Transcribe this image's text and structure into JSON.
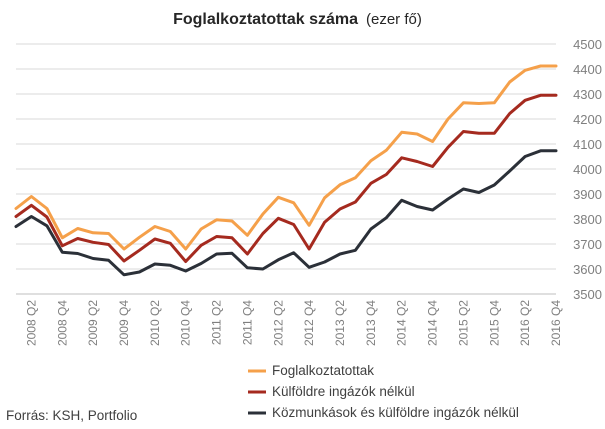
{
  "chart_data": {
    "type": "line",
    "title": "Foglalkoztatottak száma",
    "subtitle": "(ezer fő)",
    "source": "Forrás: KSH, Portfolio",
    "ylim": [
      3500,
      4500
    ],
    "yticks": [
      3500,
      3600,
      3700,
      3800,
      3900,
      4000,
      4100,
      4200,
      4300,
      4400,
      4500
    ],
    "ytick_labels": [
      "3500",
      "3600",
      "3700",
      "3800",
      "3900",
      "4000",
      "4100",
      "4200",
      "4300",
      "4400",
      "4500"
    ],
    "grid": true,
    "y_axis_position": "right",
    "legend_position": "bottom",
    "categories": [
      "2008 Q1",
      "2008 Q2",
      "2008 Q3",
      "2008 Q4",
      "2009 Q1",
      "2009 Q2",
      "2009 Q3",
      "2009 Q4",
      "2010 Q1",
      "2010 Q2",
      "2010 Q3",
      "2010 Q4",
      "2011 Q1",
      "2011 Q2",
      "2011 Q3",
      "2011 Q4",
      "2012 Q1",
      "2012 Q2",
      "2012 Q3",
      "2012 Q4",
      "2013 Q1",
      "2013 Q2",
      "2013 Q3",
      "2013 Q4",
      "2014 Q1",
      "2014 Q2",
      "2014 Q3",
      "2014 Q4",
      "2015 Q1",
      "2015 Q2",
      "2015 Q3",
      "2015 Q4",
      "2016 Q1",
      "2016 Q2",
      "2016 Q3",
      "2016 Q4"
    ],
    "xtick_labels": [
      "2008 Q2",
      "2008 Q4",
      "2009 Q2",
      "2009 Q4",
      "2010 Q2",
      "2010 Q4",
      "2011 Q2",
      "2011 Q4",
      "2012 Q2",
      "2012 Q4",
      "2013 Q2",
      "2013 Q4",
      "2014 Q2",
      "2014 Q4",
      "2015 Q2",
      "2015 Q4",
      "2016 Q2",
      "2016 Q4"
    ],
    "series": [
      {
        "name": "Foglalkoztatottak",
        "color": "#f5a04a",
        "values": [
          3842,
          3890,
          3842,
          3725,
          3762,
          3745,
          3742,
          3680,
          3727,
          3770,
          3750,
          3680,
          3760,
          3797,
          3792,
          3735,
          3820,
          3887,
          3865,
          3775,
          3885,
          3937,
          3965,
          4033,
          4075,
          4147,
          4140,
          4110,
          4200,
          4265,
          4262,
          4265,
          4348,
          4395,
          4412,
          4412
        ]
      },
      {
        "name": "Külföldre ingázók nélkül",
        "color": "#a52a1f",
        "values": [
          3810,
          3855,
          3808,
          3693,
          3722,
          3707,
          3698,
          3632,
          3675,
          3720,
          3703,
          3630,
          3695,
          3730,
          3725,
          3660,
          3742,
          3803,
          3778,
          3680,
          3787,
          3840,
          3868,
          3943,
          3978,
          4045,
          4030,
          4010,
          4087,
          4150,
          4143,
          4143,
          4222,
          4275,
          4295,
          4295
        ]
      },
      {
        "name": "Közmunkások és külföldre ingázók nélkül",
        "color": "#2b3038",
        "values": [
          3770,
          3810,
          3773,
          3667,
          3662,
          3642,
          3635,
          3577,
          3588,
          3620,
          3615,
          3592,
          3622,
          3660,
          3663,
          3605,
          3600,
          3637,
          3665,
          3607,
          3628,
          3660,
          3675,
          3760,
          3805,
          3875,
          3850,
          3836,
          3880,
          3920,
          3906,
          3936,
          3992,
          4050,
          4073,
          4073
        ]
      }
    ]
  }
}
